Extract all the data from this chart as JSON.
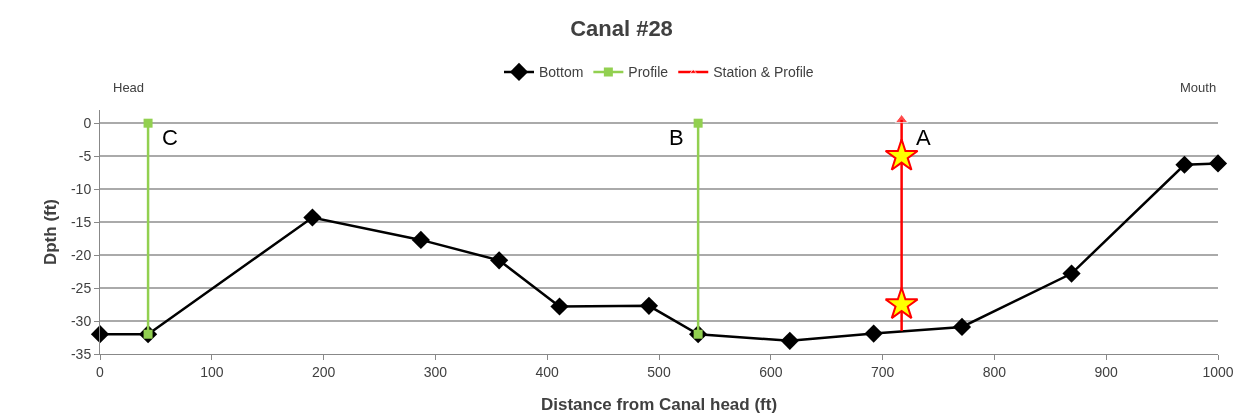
{
  "chart_data": {
    "type": "line",
    "title": "Canal #28",
    "xlabel": "Distance from Canal head (ft)",
    "ylabel": "Dpth (ft)",
    "xlim": [
      0,
      1000
    ],
    "xticks": [
      0,
      100,
      200,
      300,
      400,
      500,
      600,
      700,
      800,
      900,
      1000
    ],
    "ylim": [
      -35,
      2
    ],
    "yticks": [
      -35,
      -30,
      -25,
      -20,
      -15,
      -10,
      -5,
      0
    ],
    "grid": "y",
    "legend": "top",
    "series": [
      {
        "name": "Bottom",
        "color": "#000000",
        "marker": "diamond",
        "x": [
          0,
          43,
          190,
          287,
          357,
          411,
          491,
          535,
          617,
          692,
          771,
          869,
          970,
          1000
        ],
        "values": [
          -32,
          -32,
          -14.3,
          -17.7,
          -20.8,
          -27.8,
          -27.7,
          -32,
          -33,
          -31.9,
          -30.9,
          -22.8,
          -6.3,
          -6.1
        ]
      },
      {
        "name": "Profile",
        "color": "#92d050",
        "marker": "square",
        "x": [
          43,
          43,
          null,
          535,
          535
        ],
        "values": [
          0,
          -32,
          null,
          0,
          -32
        ]
      },
      {
        "name": "Station & Profile",
        "color": "#ff0000",
        "marker": "triangle",
        "x": [
          717,
          717
        ],
        "values": [
          -31.5,
          0.5
        ]
      },
      {
        "type": "scatter",
        "color": "#ffff00",
        "marker": "star",
        "x": [
          717,
          717
        ],
        "values": [
          -5,
          -27.5
        ]
      }
    ],
    "annotations": [
      "Head",
      "Mouth",
      {
        "text": "C",
        "x": 43,
        "y": 0
      },
      {
        "text": "B",
        "x": 535,
        "y": 0
      },
      {
        "text": "A",
        "x": 717,
        "y": 0
      }
    ]
  }
}
